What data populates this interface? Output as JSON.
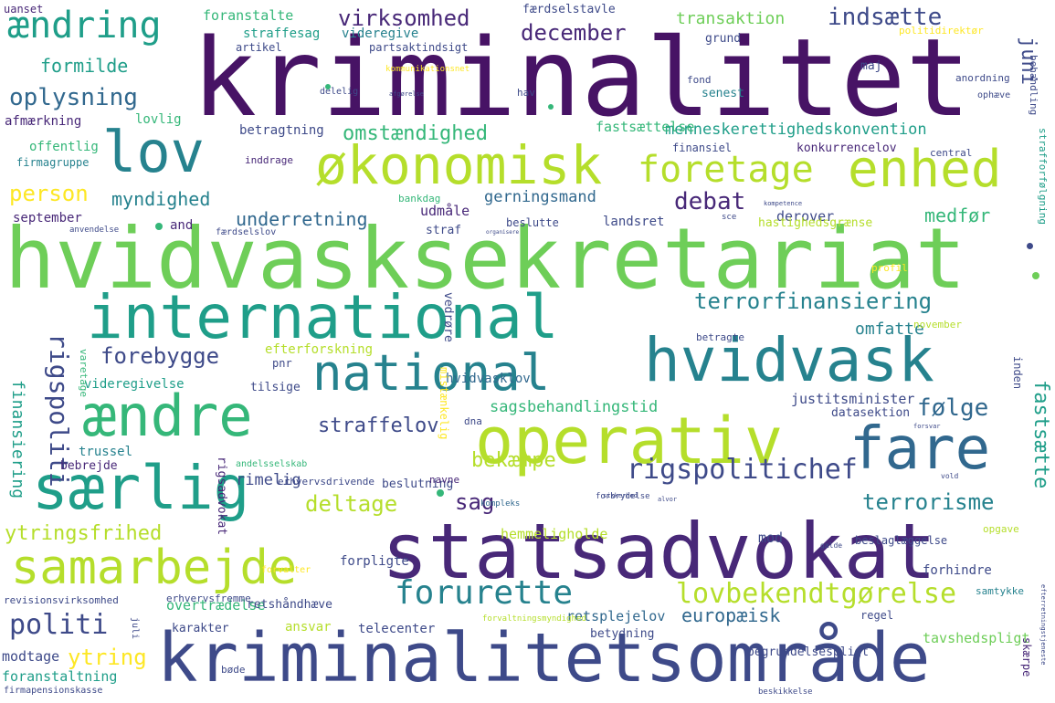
{
  "colors": {
    "background": "#ffffff",
    "palette": [
      "#440154",
      "#482878",
      "#3e4a89",
      "#31688e",
      "#26828e",
      "#1f9e89",
      "#35b779",
      "#6ece58",
      "#b5de2b",
      "#fde725"
    ]
  },
  "words": [
    "kriminalitet",
    "hvidvasksekretariat",
    "statsadvokat",
    "kriminalitetsområde",
    "operativ",
    "international",
    "økonomisk",
    "national",
    "hvidvask",
    "særlig",
    "ændre",
    "samarbejde",
    "fare",
    "lov",
    "enhed",
    "ændring",
    "foretage",
    "forurette",
    "lovbekendtgørelse",
    "rigspolitichef",
    "terrorfinansiering",
    "indsætte",
    "politi",
    "oplysning",
    "omstændighed",
    "rigspoliti",
    "virksomhed",
    "december",
    "forebygge",
    "følge",
    "debat",
    "person",
    "myndighed",
    "underretning",
    "straffelov",
    "bekæmpe",
    "deltage",
    "terrorisme",
    "sag",
    "ytringsfrihed",
    "menneskerettighedskonvention",
    "transaktion",
    "formilde",
    "fastsætte",
    "europæisk",
    "ytring",
    "finansiering",
    "omfatte",
    "sagsbehandlingstid",
    "gerningsmand",
    "medfør",
    "juni",
    "landsret",
    "retsplejelov",
    "tavshedspligt",
    "hemmeligholde",
    "rimelig",
    "betragtning",
    "fastsættelse",
    "udmåle",
    "modtage",
    "foranstaltning",
    "foranstalte",
    "straffesag",
    "videregive",
    "overtrædelse",
    "ansvar",
    "telecenter",
    "karakter",
    "justitsminister",
    "datasektion",
    "offentlig",
    "afmærkning",
    "lovlig",
    "september",
    "derover",
    "hvidvasklov",
    "videregivelse",
    "efterforskning",
    "mod",
    "forpligte",
    "uanset",
    "færdselstavle",
    "partsaktindsigt",
    "artikel",
    "grund",
    "maj",
    "senest",
    "konkurrencelov",
    "finansiel",
    "firmagruppe",
    "inddrage",
    "straf",
    "beslutte",
    "and",
    "bankdag",
    "hastighedsgrænse",
    "profil",
    "betragte",
    "november",
    "inden",
    "vedrøre",
    "mistænkelig",
    "pnr",
    "varetage",
    "tilsige",
    "trussel",
    "bebrejde",
    "rigsadvokat",
    "beslutning",
    "erhvervsdrivende",
    "navne",
    "dna",
    "andelsselskab",
    "retshåndhæve",
    "regel",
    "betydning",
    "begrundelsespligt",
    "skærpe",
    "forhindre",
    "opgave",
    "samtykke",
    "beslaglæggelse",
    "revisionsvirksomhed",
    "erhvervsfremme",
    "forvaltningsmyndighed",
    "kompleks",
    "politidirektør",
    "kommunikationsnet",
    "fond",
    "hav",
    "delelig",
    "anordning",
    "ophæve",
    "behandling",
    "central",
    "strafforfølgning",
    "færdselslov",
    "anvendelse",
    "organisere",
    "bøde",
    "firmapensionskasse",
    "juli",
    "sce",
    "forvalter",
    "forbrydelse",
    "gælde",
    "alvor",
    "kompetence",
    "efterretningstjeneste",
    "afgørelse",
    "sikkerhed",
    "beskikkelse",
    "forsvar",
    "vold"
  ]
}
